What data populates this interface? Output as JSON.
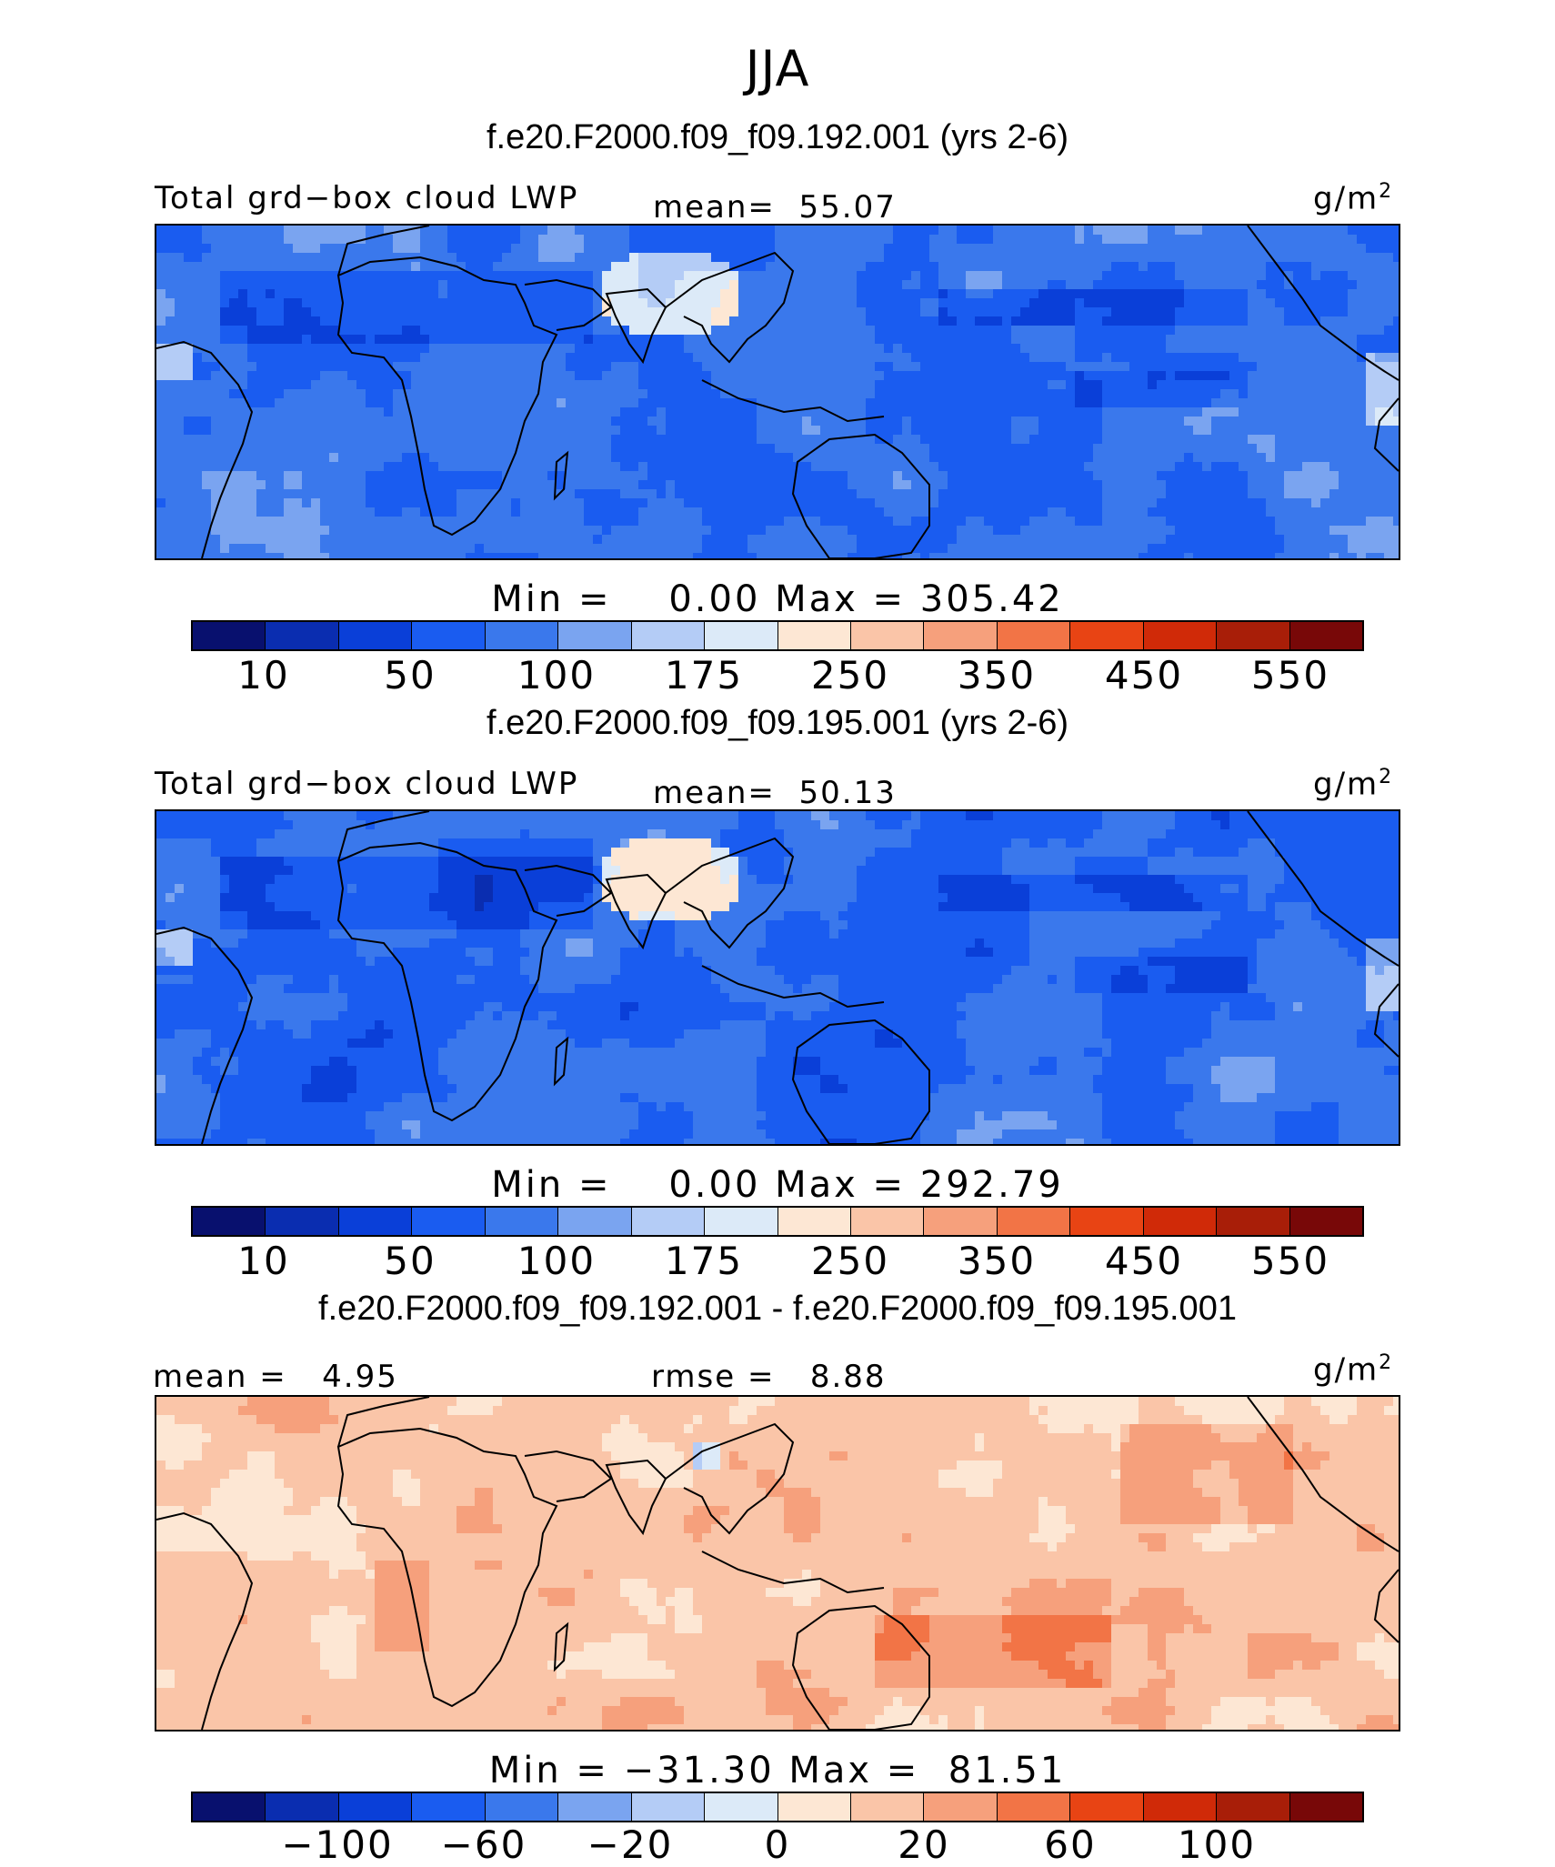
{
  "title": "JJA",
  "palette": {
    "abs": [
      "#08106e",
      "#0a2db0",
      "#0a3fd8",
      "#1a5cf0",
      "#3a78ec",
      "#7aa4f0",
      "#b4ccf6",
      "#dceaf8",
      "#fde7d4",
      "#fac5a8",
      "#f6a07c",
      "#f27446",
      "#e84414",
      "#d02a08",
      "#a81e08",
      "#780808"
    ],
    "diff": [
      "#08106e",
      "#0a2db0",
      "#0a3fd8",
      "#1a5cf0",
      "#3a78ec",
      "#7aa4f0",
      "#b4ccf6",
      "#dceaf8",
      "#fde7d4",
      "#fac5a8",
      "#f6a07c",
      "#f27446",
      "#e84414",
      "#d02a08",
      "#a81e08",
      "#780808"
    ]
  },
  "panels": [
    {
      "case_title": "f.e20.F2000.f09_f09.192.001 (yrs 2-6)",
      "var_label": "Total grd−box cloud LWP",
      "stat_label": "mean=  55.07",
      "units": "g/m",
      "units_sup": "2",
      "minmax": "Min =    0.00 Max = 305.42",
      "ticks": [
        "10",
        "50",
        "100",
        "175",
        "250",
        "350",
        "450",
        "550"
      ],
      "type": "abs"
    },
    {
      "case_title": "f.e20.F2000.f09_f09.195.001 (yrs 2-6)",
      "var_label": "Total grd−box cloud LWP",
      "stat_label": "mean=  50.13",
      "units": "g/m",
      "units_sup": "2",
      "minmax": "Min =    0.00 Max = 292.79",
      "ticks": [
        "10",
        "50",
        "100",
        "175",
        "250",
        "350",
        "450",
        "550"
      ],
      "type": "abs"
    },
    {
      "case_title": "f.e20.F2000.f09_f09.192.001 - f.e20.F2000.f09_f09.195.001",
      "var_label": "mean =   4.95",
      "stat_label": "rmse =   8.88",
      "units": "g/m",
      "units_sup": "2",
      "minmax": "Min = −31.30 Max =  81.51",
      "ticks": [
        "−100",
        "−60",
        "−20",
        "0",
        "20",
        "60",
        "100"
      ],
      "type": "diff"
    }
  ]
}
